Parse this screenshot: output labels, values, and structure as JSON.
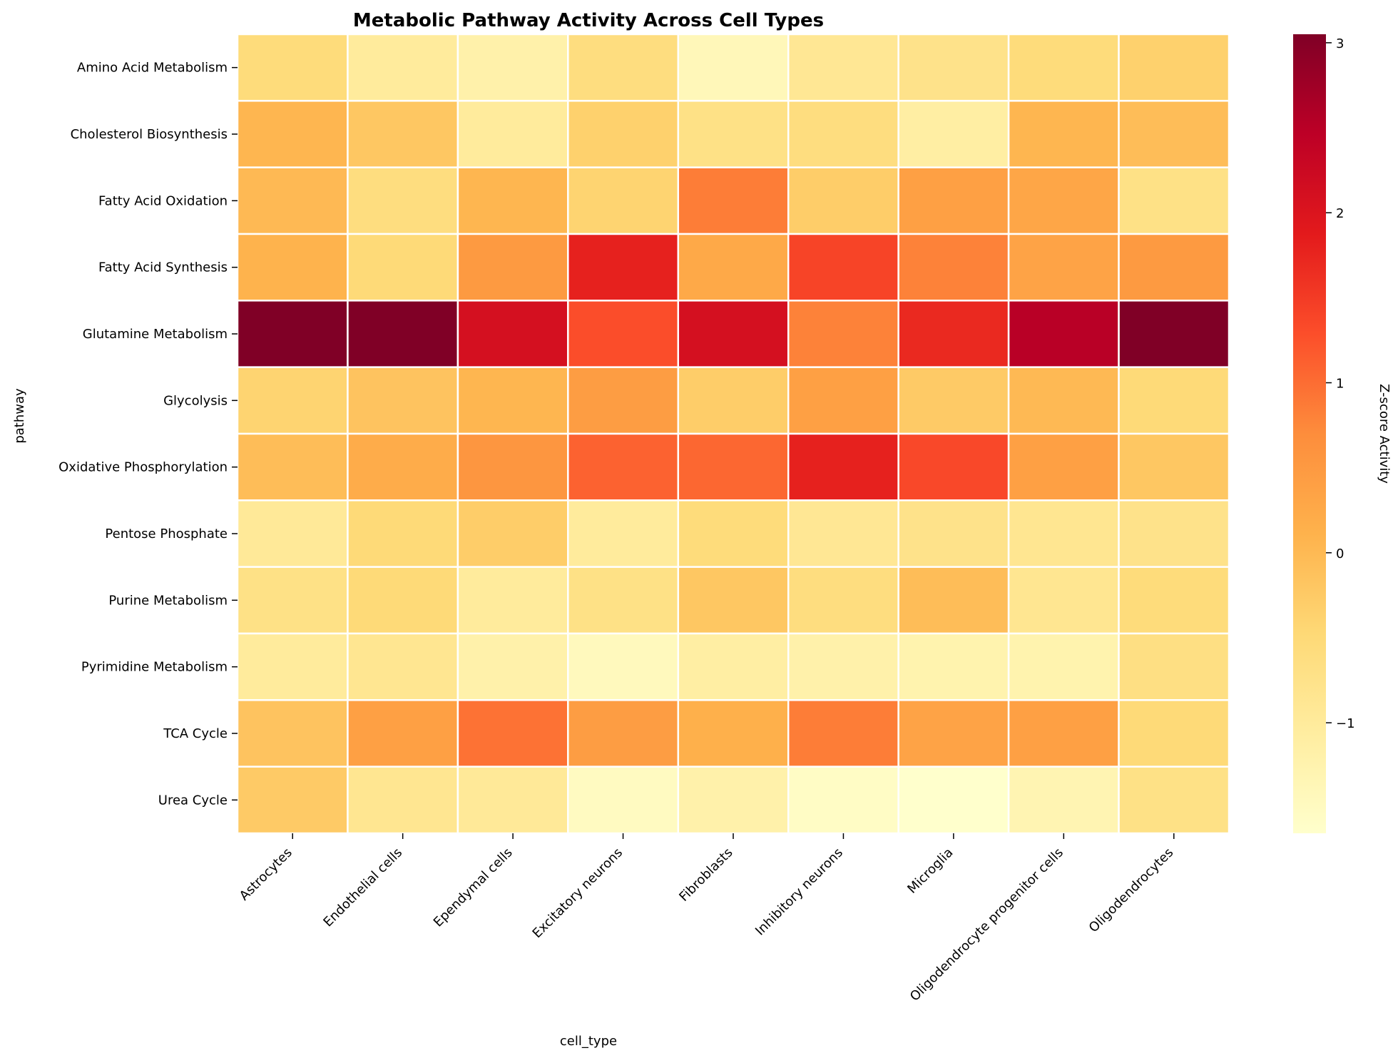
{
  "chart_data": {
    "type": "heatmap",
    "title": "Metabolic Pathway Activity Across Cell Types",
    "xlabel": "cell_type",
    "ylabel": "pathway",
    "colorbar_label": "Z-score Activity",
    "colormap": "YlOrRd",
    "vmin": -1.65,
    "vmax": 3.05,
    "colorbar_ticks": [
      {
        "value": -1,
        "label": "−1"
      },
      {
        "value": 0,
        "label": "0"
      },
      {
        "value": 1,
        "label": "1"
      },
      {
        "value": 2,
        "label": "2"
      },
      {
        "value": 3,
        "label": "3"
      }
    ],
    "cell_border_color": "#ffffff",
    "x_categories": [
      "Astrocytes",
      "Endothelial cells",
      "Ependymal cells",
      "Excitatory neurons",
      "Fibroblasts",
      "Inhibitory neurons",
      "Microglia",
      "Oligodendrocyte progenitor cells",
      "Oligodendrocytes"
    ],
    "y_categories": [
      "Amino Acid Metabolism",
      "Cholesterol Biosynthesis",
      "Fatty Acid Oxidation",
      "Fatty Acid Synthesis",
      "Glutamine Metabolism",
      "Glycolysis",
      "Oxidative Phosphorylation",
      "Pentose Phosphate",
      "Purine Metabolism",
      "Pyrimidine Metabolism",
      "TCA Cycle",
      "Urea Cycle"
    ],
    "values": [
      [
        -0.55,
        -1.0,
        -1.2,
        -0.6,
        -1.4,
        -0.9,
        -0.75,
        -0.55,
        -0.35
      ],
      [
        0.05,
        -0.2,
        -1.0,
        -0.35,
        -0.7,
        -0.6,
        -1.1,
        0.05,
        -0.05
      ],
      [
        0.0,
        -0.6,
        0.05,
        -0.4,
        0.85,
        -0.3,
        0.4,
        0.3,
        -0.7
      ],
      [
        0.1,
        -0.5,
        0.5,
        1.8,
        0.25,
        1.4,
        0.8,
        0.35,
        0.5
      ],
      [
        3.05,
        3.05,
        2.1,
        1.3,
        2.1,
        0.8,
        1.7,
        2.5,
        3.05
      ],
      [
        -0.4,
        -0.15,
        0.05,
        0.45,
        -0.3,
        0.4,
        -0.25,
        0.0,
        -0.5
      ],
      [
        -0.05,
        0.2,
        0.55,
        1.1,
        1.05,
        1.8,
        1.35,
        0.4,
        -0.2
      ],
      [
        -0.95,
        -0.5,
        -0.3,
        -1.0,
        -0.55,
        -0.9,
        -0.75,
        -0.85,
        -0.75
      ],
      [
        -0.7,
        -0.5,
        -1.0,
        -0.7,
        -0.2,
        -0.6,
        -0.05,
        -0.85,
        -0.55
      ],
      [
        -1.0,
        -0.85,
        -1.2,
        -1.45,
        -1.1,
        -1.2,
        -1.25,
        -1.25,
        -0.65
      ],
      [
        -0.15,
        0.4,
        0.95,
        0.45,
        0.15,
        0.85,
        0.35,
        0.4,
        -0.5
      ],
      [
        -0.25,
        -0.85,
        -0.95,
        -1.5,
        -1.2,
        -1.55,
        -1.65,
        -1.3,
        -0.7
      ]
    ]
  }
}
